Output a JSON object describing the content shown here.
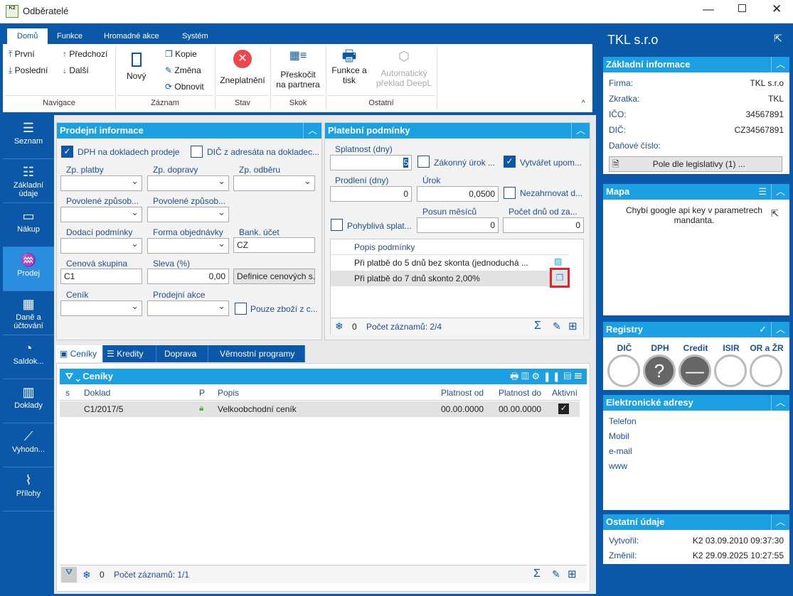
{
  "window": {
    "title": "Odběratelé",
    "logo": "K2"
  },
  "ribbon": {
    "tabs": [
      "Domů",
      "Funkce",
      "Hromadné akce",
      "Systém"
    ],
    "buttons": {
      "first": "První",
      "prev": "Předchozí",
      "last": "Poslední",
      "next": "Další",
      "new": "Nový",
      "copy": "Kopie",
      "change": "Změna",
      "refresh": "Obnovit",
      "invalidate": "Zneplatnění",
      "jump1": "Přeskočit",
      "jump2": "na partnera",
      "print1": "Funkce a",
      "print2": "tisk",
      "deepl1": "Automatický",
      "deepl2": "překlad DeepL"
    },
    "groups": [
      "Navigace",
      "Záznam",
      "Stav",
      "Skok",
      "Ostatní"
    ]
  },
  "nav": [
    "Seznam",
    "Základní údaje",
    "Nákup",
    "Prodej",
    "Daně a účtování",
    "Saldok...",
    "Doklady",
    "Vyhodn...",
    "Přílohy"
  ],
  "sales": {
    "title": "Prodejní informace",
    "vat_docs": "DPH na dokladech prodeje",
    "dic_addr": "DIČ z adresáta na dokladec...",
    "labels": [
      "Zp. platby",
      "Zp. dopravy",
      "Zp. odběru",
      "Povolené způsob...",
      "Povolené způsob...",
      "Dodací podmínky",
      "Forma objednávky",
      "Bank. účet",
      "Cenová skupina",
      "Sleva (%)",
      "Ceník",
      "Prodejní akce"
    ],
    "bank": "CZ",
    "price_group": "C1",
    "discount": "0,00",
    "price_def": "Definice cenových s...",
    "only_goods": "Pouze zboží z c..."
  },
  "payment": {
    "title": "Platební podmínky",
    "due_label": "Splatnost (dny)",
    "due": "5",
    "legal_interest": "Zákonný úrok ...",
    "reminders": "Vytvářet upom...",
    "delay_label": "Prodlení (dny)",
    "delay": "0",
    "interest_label": "Úrok",
    "interest": "0,0500",
    "exclude": "Nezahrnovat d...",
    "floating": "Pohyblivá splat...",
    "shift_label": "Posun měsíců",
    "shift": "0",
    "days_label": "Počet dnů od za...",
    "days": "0",
    "grid_header": "Popis podmínky",
    "rows": [
      "Při platbě do 5 dnů bez skonta (jednoduchá ...",
      "Při platbě do 7 dnů skonto 2,00%"
    ],
    "footer_count": "0",
    "footer_records": "Počet záznamů: 2/4"
  },
  "tabs": [
    "Ceníky",
    "Kredity",
    "Doprava",
    "Věrnostní programy"
  ],
  "pricelists": {
    "title": "Ceníky",
    "columns": [
      "s",
      "Doklad",
      "P",
      "Popis",
      "Platnost od",
      "Platnost do",
      "Aktivní"
    ],
    "rows": [
      {
        "doc": "C1/2017/5",
        "desc": "Velkoobchodní ceník",
        "from": "00.00.0000",
        "to": "00.00.0000",
        "active": true
      }
    ],
    "footer_count": "0",
    "footer_records": "Počet záznamů: 1/1"
  },
  "right": {
    "title": "TKL s.r.o",
    "basic": {
      "title": "Základní informace",
      "rows": [
        [
          "Firma:",
          "TKL s.r.o"
        ],
        [
          "Zkratka:",
          "TKL"
        ],
        [
          "IČO:",
          "34567891"
        ],
        [
          "DIČ:",
          "CZ34567891"
        ],
        [
          "Daňové číslo:",
          ""
        ]
      ],
      "button": "Pole dle legislativy (1) ..."
    },
    "map": {
      "title": "Mapa",
      "text": "Chybí google api key v parametrech mandanta."
    },
    "registry": {
      "title": "Registry",
      "items": [
        "DIČ",
        "DPH",
        "Credit",
        "ISIR",
        "OR a ŽR"
      ]
    },
    "addresses": {
      "title": "Elektronické adresy",
      "items": [
        "Telefon",
        "Mobil",
        "e-mail",
        "www"
      ]
    },
    "other": {
      "title": "Ostatní údaje",
      "created_label": "Vytvořil:",
      "created": "K2 03.09.2010 09:37:30",
      "changed_label": "Změnil:",
      "changed": "K2 29.09.2025 10:27:55"
    }
  },
  "colors": {
    "frame": "#0b57a8",
    "header": "#1aa0e3",
    "accent_red": "#e8202a"
  }
}
